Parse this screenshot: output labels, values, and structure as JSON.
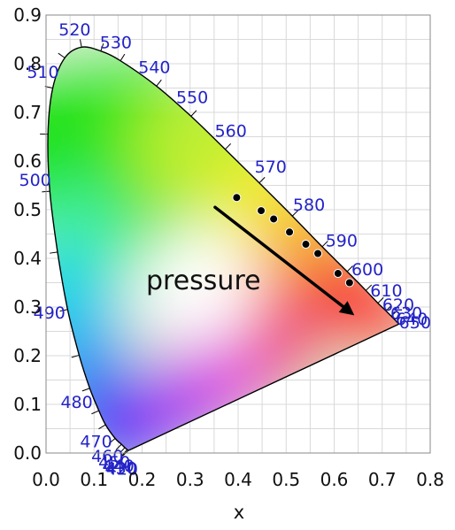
{
  "chart_data": {
    "type": "scatter",
    "title": "",
    "xlabel": "x",
    "ylabel": "",
    "xlim": [
      0,
      0.8
    ],
    "ylim": [
      0,
      0.9
    ],
    "xticks": [
      "0.0",
      "0.1",
      "0.2",
      "0.3",
      "0.4",
      "0.5",
      "0.6",
      "0.7",
      "0.8"
    ],
    "yticks": [
      "0.0",
      "0.1",
      "0.2",
      "0.3",
      "0.4",
      "0.5",
      "0.6",
      "0.7",
      "0.8",
      "0.9"
    ],
    "grid": true,
    "spectral_locus": [
      {
        "wavelength": "420",
        "x": 0.171,
        "y": 0.005
      },
      {
        "wavelength": "430",
        "x": 0.169,
        "y": 0.007
      },
      {
        "wavelength": "440",
        "x": 0.164,
        "y": 0.011
      },
      {
        "wavelength": "450",
        "x": 0.157,
        "y": 0.018
      },
      {
        "wavelength": "460",
        "x": 0.144,
        "y": 0.03
      },
      {
        "wavelength": "470",
        "x": 0.124,
        "y": 0.058
      },
      {
        "wavelength": "475",
        "x": 0.11,
        "y": 0.087
      },
      {
        "wavelength": "480",
        "x": 0.091,
        "y": 0.133
      },
      {
        "wavelength": "485",
        "x": 0.069,
        "y": 0.201
      },
      {
        "wavelength": "490",
        "x": 0.045,
        "y": 0.295
      },
      {
        "wavelength": "495",
        "x": 0.024,
        "y": 0.413
      },
      {
        "wavelength": "500",
        "x": 0.008,
        "y": 0.538
      },
      {
        "wavelength": "505",
        "x": 0.004,
        "y": 0.655
      },
      {
        "wavelength": "510",
        "x": 0.014,
        "y": 0.75
      },
      {
        "wavelength": "515",
        "x": 0.039,
        "y": 0.812
      },
      {
        "wavelength": "520",
        "x": 0.074,
        "y": 0.834
      },
      {
        "wavelength": "525",
        "x": 0.114,
        "y": 0.826
      },
      {
        "wavelength": "530",
        "x": 0.155,
        "y": 0.806
      },
      {
        "wavelength": "540",
        "x": 0.23,
        "y": 0.754
      },
      {
        "wavelength": "550",
        "x": 0.302,
        "y": 0.692
      },
      {
        "wavelength": "560",
        "x": 0.373,
        "y": 0.624
      },
      {
        "wavelength": "570",
        "x": 0.444,
        "y": 0.555
      },
      {
        "wavelength": "580",
        "x": 0.513,
        "y": 0.487
      },
      {
        "wavelength": "590",
        "x": 0.575,
        "y": 0.424
      },
      {
        "wavelength": "600",
        "x": 0.627,
        "y": 0.373
      },
      {
        "wavelength": "610",
        "x": 0.666,
        "y": 0.334
      },
      {
        "wavelength": "620",
        "x": 0.691,
        "y": 0.308
      },
      {
        "wavelength": "630",
        "x": 0.708,
        "y": 0.292
      },
      {
        "wavelength": "640",
        "x": 0.719,
        "y": 0.281
      },
      {
        "wavelength": "650",
        "x": 0.726,
        "y": 0.274
      },
      {
        "wavelength": "700",
        "x": 0.735,
        "y": 0.265
      }
    ],
    "wavelength_labels": [
      {
        "text": "420",
        "x": 0.171,
        "y": 0.005
      },
      {
        "text": "430",
        "x": 0.169,
        "y": 0.007
      },
      {
        "text": "440",
        "x": 0.164,
        "y": 0.011
      },
      {
        "text": "450",
        "x": 0.157,
        "y": 0.018
      },
      {
        "text": "460",
        "x": 0.144,
        "y": 0.03
      },
      {
        "text": "470",
        "x": 0.124,
        "y": 0.058
      },
      {
        "text": "480",
        "x": 0.091,
        "y": 0.133
      },
      {
        "text": "490",
        "x": 0.045,
        "y": 0.295
      },
      {
        "text": "500",
        "x": 0.008,
        "y": 0.538
      },
      {
        "text": "510",
        "x": 0.014,
        "y": 0.75
      },
      {
        "text": "520",
        "x": 0.074,
        "y": 0.834
      },
      {
        "text": "530",
        "x": 0.155,
        "y": 0.806
      },
      {
        "text": "540",
        "x": 0.23,
        "y": 0.754
      },
      {
        "text": "550",
        "x": 0.302,
        "y": 0.692
      },
      {
        "text": "560",
        "x": 0.373,
        "y": 0.624
      },
      {
        "text": "570",
        "x": 0.444,
        "y": 0.555
      },
      {
        "text": "580",
        "x": 0.513,
        "y": 0.487
      },
      {
        "text": "590",
        "x": 0.575,
        "y": 0.424
      },
      {
        "text": "600",
        "x": 0.627,
        "y": 0.373
      },
      {
        "text": "610",
        "x": 0.666,
        "y": 0.334
      },
      {
        "text": "620",
        "x": 0.691,
        "y": 0.308
      },
      {
        "text": "630",
        "x": 0.708,
        "y": 0.292
      },
      {
        "text": "640",
        "x": 0.719,
        "y": 0.281
      },
      {
        "text": "650",
        "x": 0.726,
        "y": 0.274
      }
    ],
    "points": [
      {
        "x": 0.397,
        "y": 0.525
      },
      {
        "x": 0.448,
        "y": 0.498
      },
      {
        "x": 0.474,
        "y": 0.481
      },
      {
        "x": 0.507,
        "y": 0.454
      },
      {
        "x": 0.541,
        "y": 0.429
      },
      {
        "x": 0.566,
        "y": 0.41
      },
      {
        "x": 0.608,
        "y": 0.369
      },
      {
        "x": 0.632,
        "y": 0.35
      }
    ],
    "annotation": {
      "text": "pressure",
      "arrow_from": {
        "x": 0.352,
        "y": 0.505
      },
      "arrow_to": {
        "x": 0.642,
        "y": 0.283
      }
    },
    "colors": {
      "wavelength_label": "#2323c8",
      "locus": "#000000",
      "points": "#000000",
      "arrow": "#000000",
      "grid": "#d9d9d9"
    }
  }
}
